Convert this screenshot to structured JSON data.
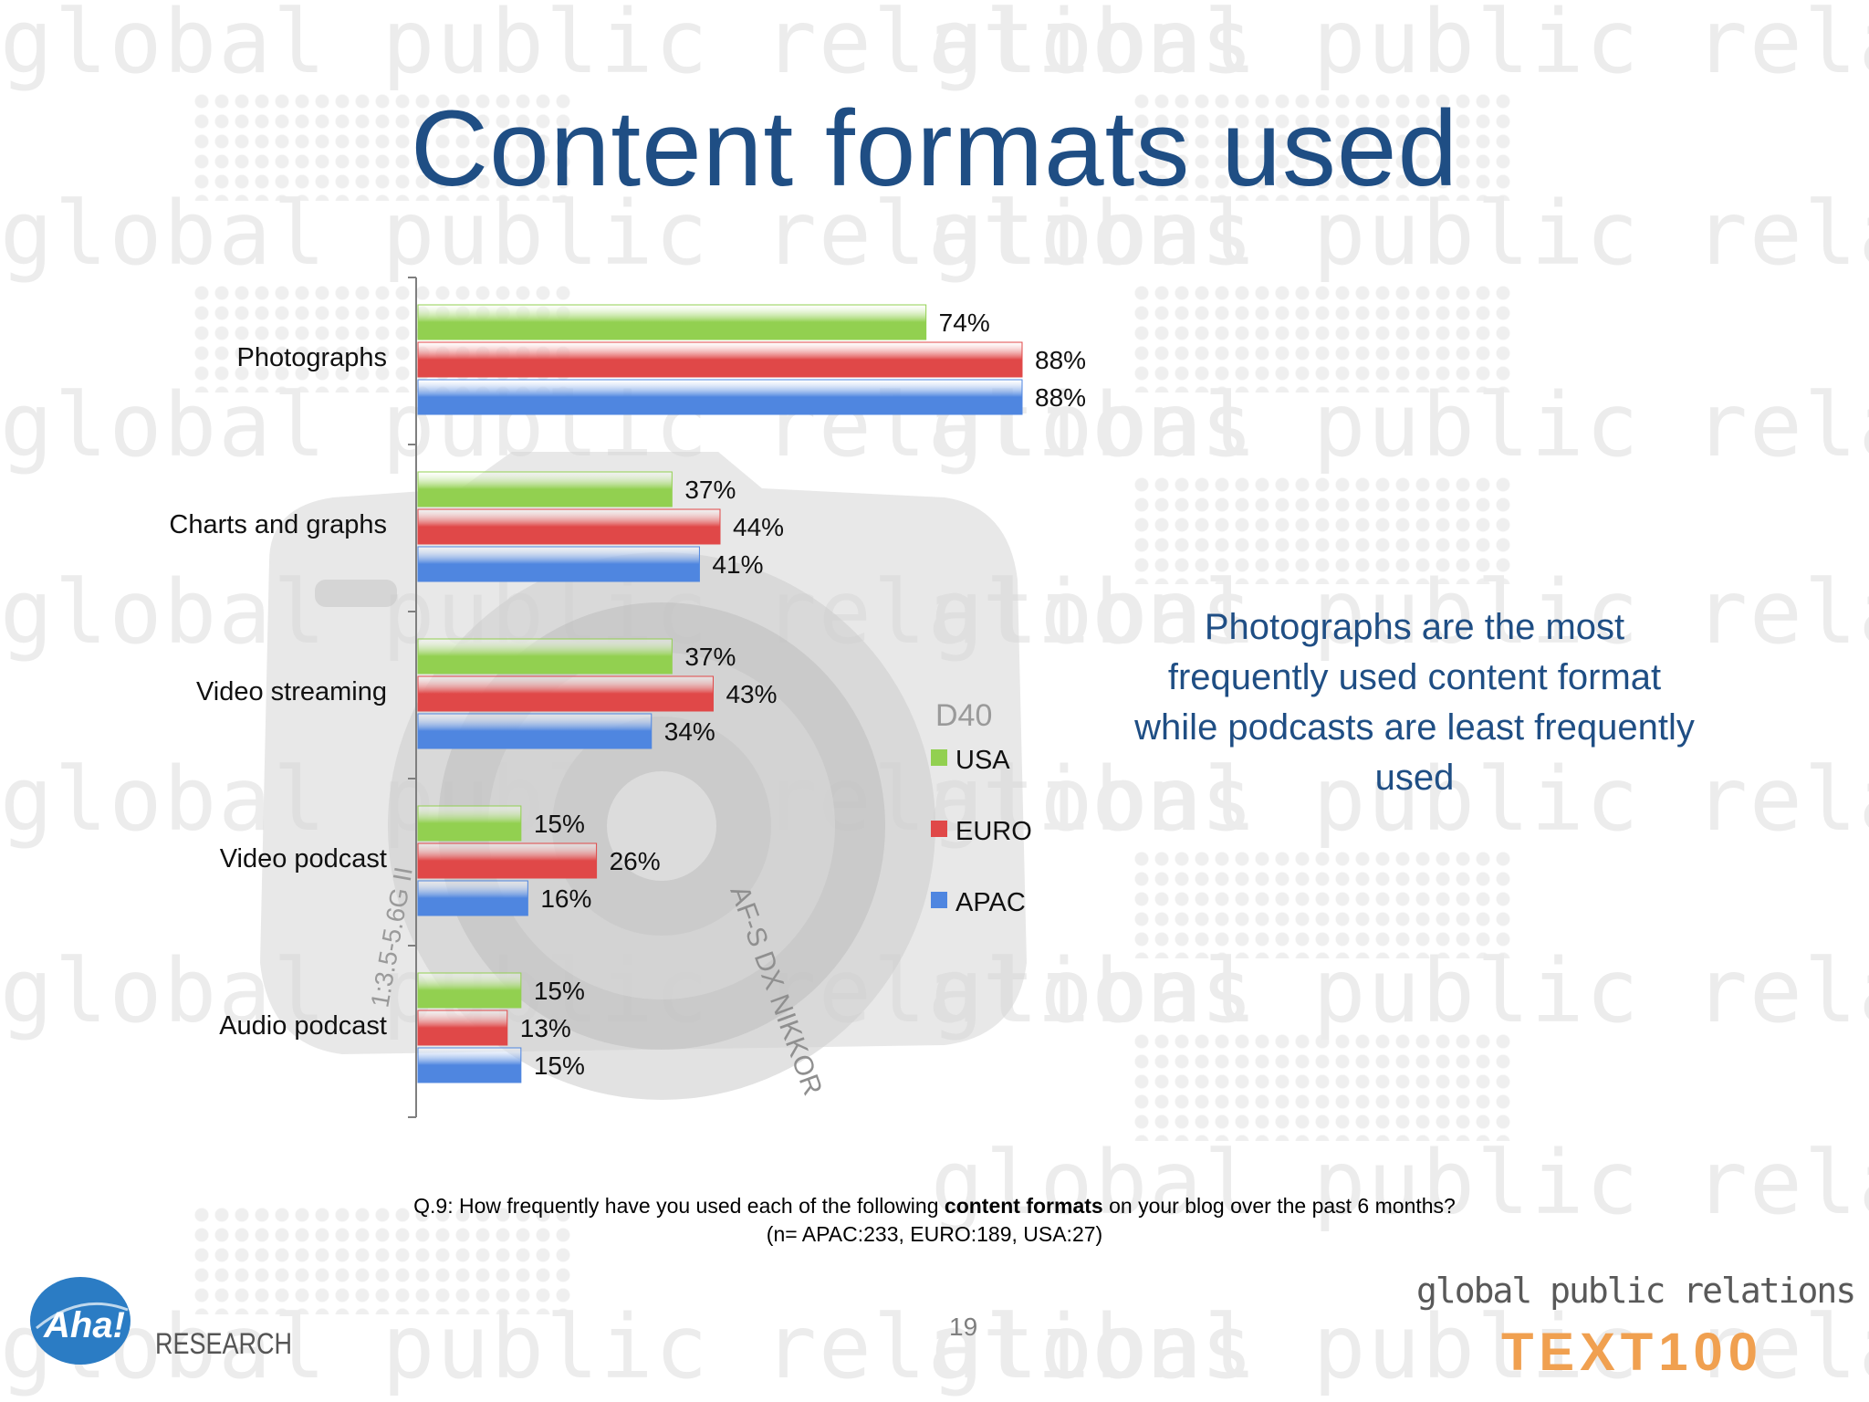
{
  "slide": {
    "title": "Content formats used",
    "callout": "Photographs are the most frequently used content format while podcasts are least frequently used",
    "footnote_prefix": "Q.9: How frequently have you used each of the following ",
    "footnote_bold": "content formats",
    "footnote_suffix": " on your blog over the past 6 months?",
    "footnote_line2": "(n= APAC:233, EURO:189, USA:27)",
    "page_number": "19",
    "watermark_text": "global public relations",
    "logo_left_word": "RESEARCH",
    "logo_left_mark": "Aha!",
    "logo_right_tagline": "global public relations",
    "logo_right_brand": "TEXT100",
    "camera_model": "D40",
    "lens_text_1": "AF-S DX NIKKOR",
    "lens_text_2": "1:3.5-5.6G II"
  },
  "chart_data": {
    "type": "bar",
    "orientation": "horizontal",
    "categories": [
      "Photographs",
      "Charts and graphs",
      "Video streaming",
      "Video podcast",
      "Audio podcast"
    ],
    "series": [
      {
        "name": "USA",
        "color": "#92d050",
        "values": [
          74,
          37,
          37,
          15,
          15
        ]
      },
      {
        "name": "EURO",
        "color": "#e04848",
        "values": [
          88,
          44,
          43,
          26,
          13
        ]
      },
      {
        "name": "APAC",
        "color": "#4f86e0",
        "values": [
          88,
          41,
          34,
          16,
          15
        ]
      }
    ],
    "value_suffix": "%",
    "xlim": [
      0,
      100
    ],
    "legend_position": "right",
    "grid": false
  }
}
